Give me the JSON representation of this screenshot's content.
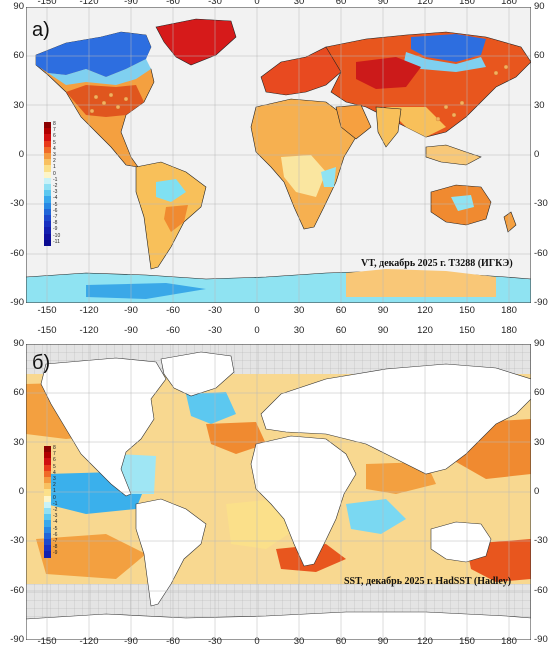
{
  "panels": {
    "a": {
      "label": "а)",
      "caption": "VT, декабрь 2025 г. T3288 (ИГКЭ)",
      "legend": [
        "8",
        "7",
        "6",
        "5",
        "4",
        "3",
        "2",
        "1",
        "0",
        "-1",
        "-2",
        "-3",
        "-4",
        "-5",
        "-6",
        "-7",
        "-8",
        "-9",
        "-10",
        "-11"
      ]
    },
    "b": {
      "label": "б)",
      "caption": "SST, декабрь 2025 г. HadSST (Hadley)",
      "legend": [
        "8",
        "7",
        "6",
        "5",
        "4",
        "3",
        "2",
        "1",
        "0",
        "-1",
        "-2",
        "-3",
        "-4",
        "-5",
        "-6",
        "-7",
        "-8",
        "-9"
      ]
    }
  },
  "axes": {
    "lon": [
      "-150",
      "-120",
      "-90",
      "-60",
      "-30",
      "0",
      "30",
      "60",
      "90",
      "120",
      "150",
      "180"
    ],
    "lat": [
      "90",
      "60",
      "30",
      "0",
      "-30",
      "-60",
      "-90"
    ]
  },
  "colors": {
    "ocean_fill": "#f2f2f2",
    "grid": "#b8b8b8",
    "coast": "#222222",
    "warm_strong": "#cc1a1a",
    "warm": "#f08a30",
    "warm_light": "#f9c777",
    "neutral": "#faf3c4",
    "cool_light": "#8fe3f2",
    "cool": "#3aa8e8",
    "cool_strong": "#2050d0"
  },
  "legend_colors": [
    "#8b0000",
    "#b00000",
    "#d01010",
    "#e83a1a",
    "#f06a28",
    "#f49a40",
    "#f8c060",
    "#fbe08a",
    "#fdf5c8",
    "#c8f2f8",
    "#90e0f4",
    "#5cc8f0",
    "#38a8ec",
    "#2888e4",
    "#2066d8",
    "#1c48cc",
    "#1830c0",
    "#1420b0",
    "#1010a0",
    "#0a0a90"
  ]
}
